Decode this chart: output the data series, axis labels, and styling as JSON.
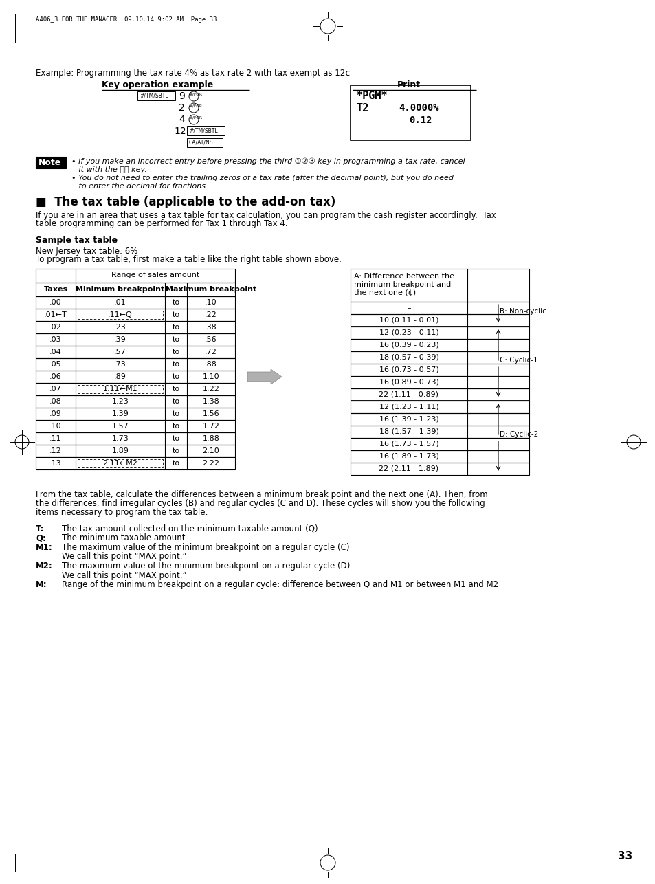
{
  "page_header": "A406_3 FOR THE MANAGER  09.10.14 9:02 AM  Page 33",
  "page_number": "33",
  "example_text": "Example: Programming the tax rate 4% as tax rate 2 with tax exempt as 12¢",
  "key_op_label": "Key operation example",
  "print_label": "Print",
  "section_title": "■  The tax table (applicable to the add-on tax)",
  "section_para1": "If you are in an area that uses a tax table for tax calculation, you can program the cash register accordingly.  Tax",
  "section_para2": "table programming can be performed for Tax 1 through Tax 4.",
  "sample_title": "Sample tax table",
  "sample_para1": "New Jersey tax table: 6%",
  "sample_para2": "To program a tax table, first make a table like the right table shown above.",
  "left_table_header1": "Range of sales amount",
  "left_table_header2a": "Taxes",
  "left_table_header2b": "Minimum breakpoint",
  "left_table_header2c": "Maximum breakpoint",
  "left_table_rows": [
    [
      ".00",
      ".01",
      "to",
      ".10"
    ],
    [
      ".01←T",
      ".11←Q",
      "to",
      ".22"
    ],
    [
      ".02",
      ".23",
      "to",
      ".38"
    ],
    [
      ".03",
      ".39",
      "to",
      ".56"
    ],
    [
      ".04",
      ".57",
      "to",
      ".72"
    ],
    [
      ".05",
      ".73",
      "to",
      ".88"
    ],
    [
      ".06",
      ".89",
      "to",
      "1.10"
    ],
    [
      ".07",
      "1.11←M1",
      "to",
      "1.22"
    ],
    [
      ".08",
      "1.23",
      "to",
      "1.38"
    ],
    [
      ".09",
      "1.39",
      "to",
      "1.56"
    ],
    [
      ".10",
      "1.57",
      "to",
      "1.72"
    ],
    [
      ".11",
      "1.73",
      "to",
      "1.88"
    ],
    [
      ".12",
      "1.89",
      "to",
      "2.10"
    ],
    [
      ".13",
      "2.11←M2",
      "to",
      "2.22"
    ]
  ],
  "right_table_header": "A: Difference between the\nminimum breakpoint and\nthe next one (¢)",
  "right_table_rows": [
    "–",
    "10 (0.11 - 0.01)",
    "12 (0.23 - 0.11)",
    "16 (0.39 - 0.23)",
    "18 (0.57 - 0.39)",
    "16 (0.73 - 0.57)",
    "16 (0.89 - 0.73)",
    "22 (1.11 - 0.89)",
    "12 (1.23 - 1.11)",
    "16 (1.39 - 1.23)",
    "18 (1.57 - 1.39)",
    "16 (1.73 - 1.57)",
    "16 (1.89 - 1.73)",
    "22 (2.11 - 1.89)"
  ],
  "b_label": "B: Non-cyclic",
  "c_label": "C: Cyclic-1",
  "d_label": "D: Cyclic-2",
  "bottom_para1": "From the tax table, calculate the differences between a minimum break point and the next one (A). Then, from",
  "bottom_para2": "the differences, find irregular cycles (B) and regular cycles (C and D). These cycles will show you the following",
  "bottom_para3": "items necessary to program the tax table:",
  "item_T_label": "T:",
  "item_T_text": "The tax amount collected on the minimum taxable amount (Q)",
  "item_Q_label": "Q:",
  "item_Q_text": "The minimum taxable amount",
  "item_M1_label": "M1:",
  "item_M1_text": "The maximum value of the minimum breakpoint on a regular cycle (C)",
  "item_M1_sub": "We call this point “MAX point.”",
  "item_M2_label": "M2:",
  "item_M2_text": "The maximum value of the minimum breakpoint on a regular cycle (D)",
  "item_M2_sub": "We call this point “MAX point.”",
  "item_M_label": "M:",
  "item_M_text": "Range of the minimum breakpoint on a regular cycle: difference between Q and M1 or between M1 and M2",
  "note_line1": "• If you make an incorrect entry before pressing the third",
  "note_line1b": "key in programming a tax rate, cancel",
  "note_line2": "   it with the",
  "note_line2b": "key.",
  "note_line3": "• You do not need to enter the trailing zeros of a tax rate (after the decimal point), but you do need",
  "note_line4": "   to enter the decimal for fractions.",
  "bg_color": "#ffffff"
}
